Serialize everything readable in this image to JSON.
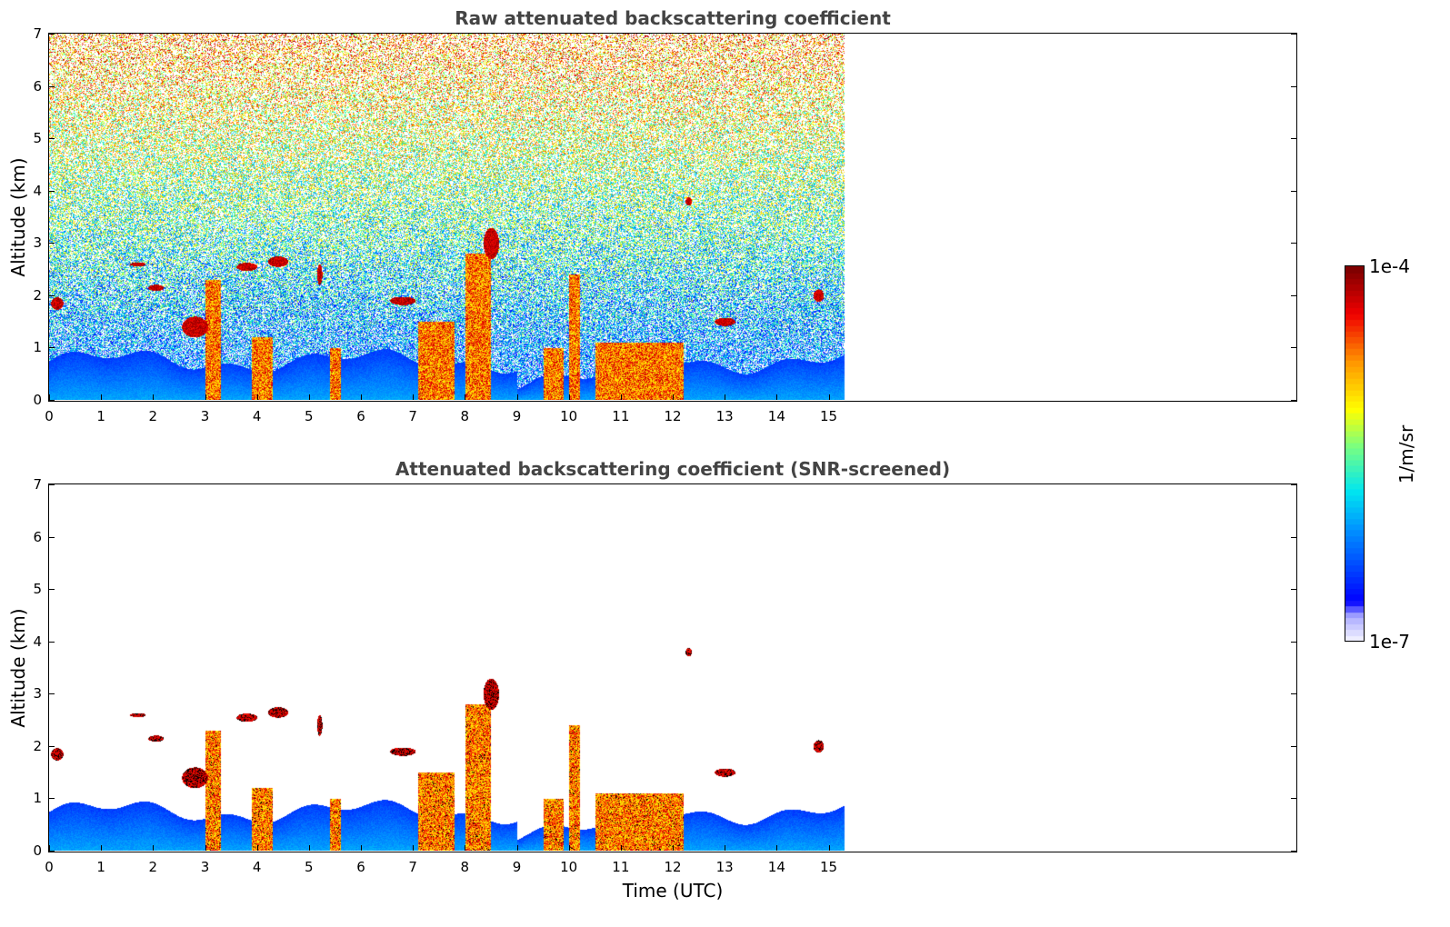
{
  "chart_data": [
    {
      "type": "heatmap",
      "title": "Raw attenuated backscattering coefficient",
      "xlabel": "",
      "ylabel": "Altitude (km)",
      "xlim": [
        0,
        24
      ],
      "ylim": [
        0,
        7
      ],
      "xticks": [
        "0",
        "1",
        "2",
        "3",
        "4",
        "5",
        "6",
        "7",
        "8",
        "9",
        "10",
        "11",
        "12",
        "13",
        "14",
        "15"
      ],
      "yticks": [
        "0",
        "1",
        "2",
        "3",
        "4",
        "5",
        "6",
        "7"
      ],
      "data_end_time": 15.3,
      "screened": false
    },
    {
      "type": "heatmap",
      "title": "Attenuated backscattering coefficient (SNR-screened)",
      "xlabel": "Time (UTC)",
      "ylabel": "Altitude (km)",
      "xlim": [
        0,
        24
      ],
      "ylim": [
        0,
        7
      ],
      "xticks": [
        "0",
        "1",
        "2",
        "3",
        "4",
        "5",
        "6",
        "7",
        "8",
        "9",
        "10",
        "11",
        "12",
        "13",
        "14",
        "15"
      ],
      "yticks": [
        "0",
        "1",
        "2",
        "3",
        "4",
        "5",
        "6",
        "7"
      ],
      "data_end_time": 15.3,
      "screened": true
    }
  ],
  "colorbar": {
    "max_label": "1e-4",
    "min_label": "1e-7",
    "unit_label": "1/m/sr",
    "scale": "log",
    "colormap": "jet",
    "colors": [
      "#eeeeff",
      "#0000ff",
      "#00b4ff",
      "#00ffff",
      "#7fff7f",
      "#ffff00",
      "#ff8000",
      "#ff0000",
      "#800000"
    ]
  }
}
